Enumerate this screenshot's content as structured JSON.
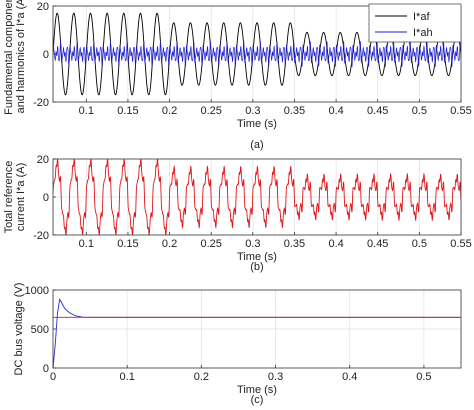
{
  "chart_data": [
    {
      "type": "line",
      "caption": "(a)",
      "xlabel": "Time (s)",
      "ylabel": [
        "Fundamental component",
        "and harmonics of I*a (A)"
      ],
      "xlim": [
        0.06,
        0.55
      ],
      "ylim": [
        -20,
        20
      ],
      "x_ticks": [
        0.1,
        0.15,
        0.2,
        0.25,
        0.3,
        0.35,
        0.4,
        0.45,
        0.5,
        0.55
      ],
      "y_ticks": [
        -20,
        0,
        20
      ],
      "grid": true,
      "legend_position": "top-right",
      "series": [
        {
          "name": "I*af",
          "color": "#000000",
          "frequency_hz": 50,
          "envelope": {
            "t": [
              0.06,
              0.2,
              0.2,
              0.35,
              0.35,
              0.55
            ],
            "amplitude": [
              17,
              17,
              13,
              13,
              9,
              9
            ]
          }
        },
        {
          "name": "I*ah",
          "color": "#1f1fd0",
          "harmonics": [
            {
              "order": 5,
              "amplitude": 2.5
            },
            {
              "order": 7,
              "amplitude": 1.8
            },
            {
              "order": 11,
              "amplitude": 1.0
            }
          ]
        }
      ]
    },
    {
      "type": "line",
      "caption": "(b)",
      "xlabel": "Time (s)",
      "ylabel": [
        "Total reference",
        "current I*a (A)"
      ],
      "xlim": [
        0.06,
        0.55
      ],
      "ylim": [
        -20,
        20
      ],
      "x_ticks": [
        0.1,
        0.15,
        0.2,
        0.25,
        0.3,
        0.35,
        0.4,
        0.45,
        0.5,
        0.55
      ],
      "y_ticks": [
        -20,
        0,
        20
      ],
      "grid": true,
      "series": [
        {
          "name": "",
          "color": "#e0151b",
          "frequency_hz": 50,
          "envelope": {
            "t": [
              0.06,
              0.2,
              0.2,
              0.35,
              0.35,
              0.55
            ],
            "amplitude": [
              17,
              17,
              13,
              13,
              9,
              9
            ]
          },
          "harmonics": [
            {
              "order": 5,
              "amplitude": 2.5
            },
            {
              "order": 7,
              "amplitude": 1.8
            },
            {
              "order": 11,
              "amplitude": 1.0
            }
          ]
        }
      ]
    },
    {
      "type": "line",
      "caption": "(c)",
      "xlabel": "Time (s)",
      "ylabel": [
        "DC bus voltage (V)"
      ],
      "xlim": [
        0,
        0.55
      ],
      "ylim": [
        0,
        1000
      ],
      "x_ticks": [
        0,
        0.1,
        0.2,
        0.3,
        0.4,
        0.5
      ],
      "y_ticks": [
        0,
        500,
        1000
      ],
      "grid": true,
      "series": [
        {
          "name": "",
          "color": "#2a2ad8",
          "x": [
            0,
            0.003,
            0.006,
            0.009,
            0.012,
            0.016,
            0.022,
            0.03,
            0.04,
            0.05,
            0.55
          ],
          "y": [
            0,
            300,
            700,
            880,
            830,
            760,
            710,
            670,
            652,
            650,
            650
          ]
        },
        {
          "name": "",
          "color": "#e0151b",
          "x": [
            0,
            0.55
          ],
          "y": [
            650,
            650
          ]
        }
      ]
    }
  ]
}
